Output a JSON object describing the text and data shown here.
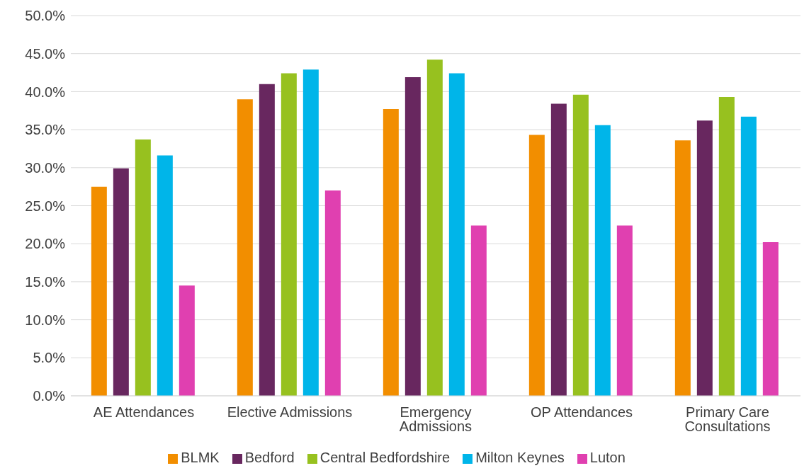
{
  "chart_data": {
    "type": "bar",
    "categories": [
      "AE Attendances",
      "Elective Admissions",
      "Emergency Admissions",
      "OP Attendances",
      "Primary Care Consultations"
    ],
    "series": [
      {
        "name": "BLMK",
        "color": "#f28e00",
        "values": [
          27.5,
          39.0,
          37.7,
          34.3,
          33.6
        ]
      },
      {
        "name": "Bedford",
        "color": "#68275f",
        "values": [
          29.9,
          41.0,
          41.9,
          38.4,
          36.2
        ]
      },
      {
        "name": "Central Bedfordshire",
        "color": "#97c11f",
        "values": [
          33.7,
          42.4,
          44.2,
          39.6,
          39.3
        ]
      },
      {
        "name": "Milton Keynes",
        "color": "#00b5e9",
        "values": [
          31.6,
          42.9,
          42.4,
          35.6,
          36.7
        ]
      },
      {
        "name": "Luton",
        "color": "#e040b0",
        "values": [
          14.5,
          27.0,
          22.4,
          22.4,
          20.2
        ]
      }
    ],
    "ylim": [
      0,
      50
    ],
    "yticks": [
      {
        "value": 0,
        "label": "0.0%"
      },
      {
        "value": 5,
        "label": "5.0%"
      },
      {
        "value": 10,
        "label": "10.0%"
      },
      {
        "value": 15,
        "label": "15.0%"
      },
      {
        "value": 20,
        "label": "20.0%"
      },
      {
        "value": 25,
        "label": "25.0%"
      },
      {
        "value": 30,
        "label": "30.0%"
      },
      {
        "value": 35,
        "label": "35.0%"
      },
      {
        "value": 40,
        "label": "40.0%"
      },
      {
        "value": 45,
        "label": "45.0%"
      },
      {
        "value": 50,
        "label": "50.0%"
      }
    ],
    "grid": "y",
    "legend": "bottom"
  }
}
